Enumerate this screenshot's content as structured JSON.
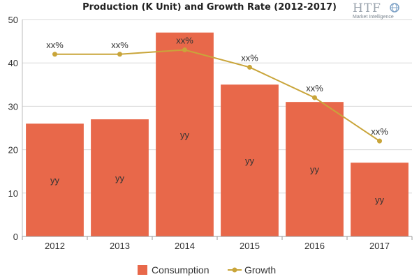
{
  "logo": {
    "text": "HTF",
    "subtitle": "Market Intelligence"
  },
  "chart_data": {
    "type": "bar",
    "title": "Production (K Unit) and Growth Rate (2012-2017)",
    "categories": [
      "2012",
      "2013",
      "2014",
      "2015",
      "2016",
      "2017"
    ],
    "ylim": [
      0,
      50
    ],
    "yticks": [
      0,
      10,
      20,
      30,
      40,
      50
    ],
    "grid": true,
    "legend_position": "bottom",
    "series": [
      {
        "name": "Consumption",
        "type": "bar",
        "values": [
          26,
          27,
          47,
          35,
          31,
          17
        ],
        "labels": [
          "yy",
          "yy",
          "yy",
          "yy",
          "yy",
          "yy"
        ],
        "color": "#e8684a"
      },
      {
        "name": "Growth",
        "type": "line",
        "values": [
          42,
          42,
          43,
          39,
          32,
          22
        ],
        "labels": [
          "xx%",
          "xx%",
          "xx%",
          "xx%",
          "xx%",
          "xx%"
        ],
        "color": "#c9a53a"
      }
    ]
  }
}
